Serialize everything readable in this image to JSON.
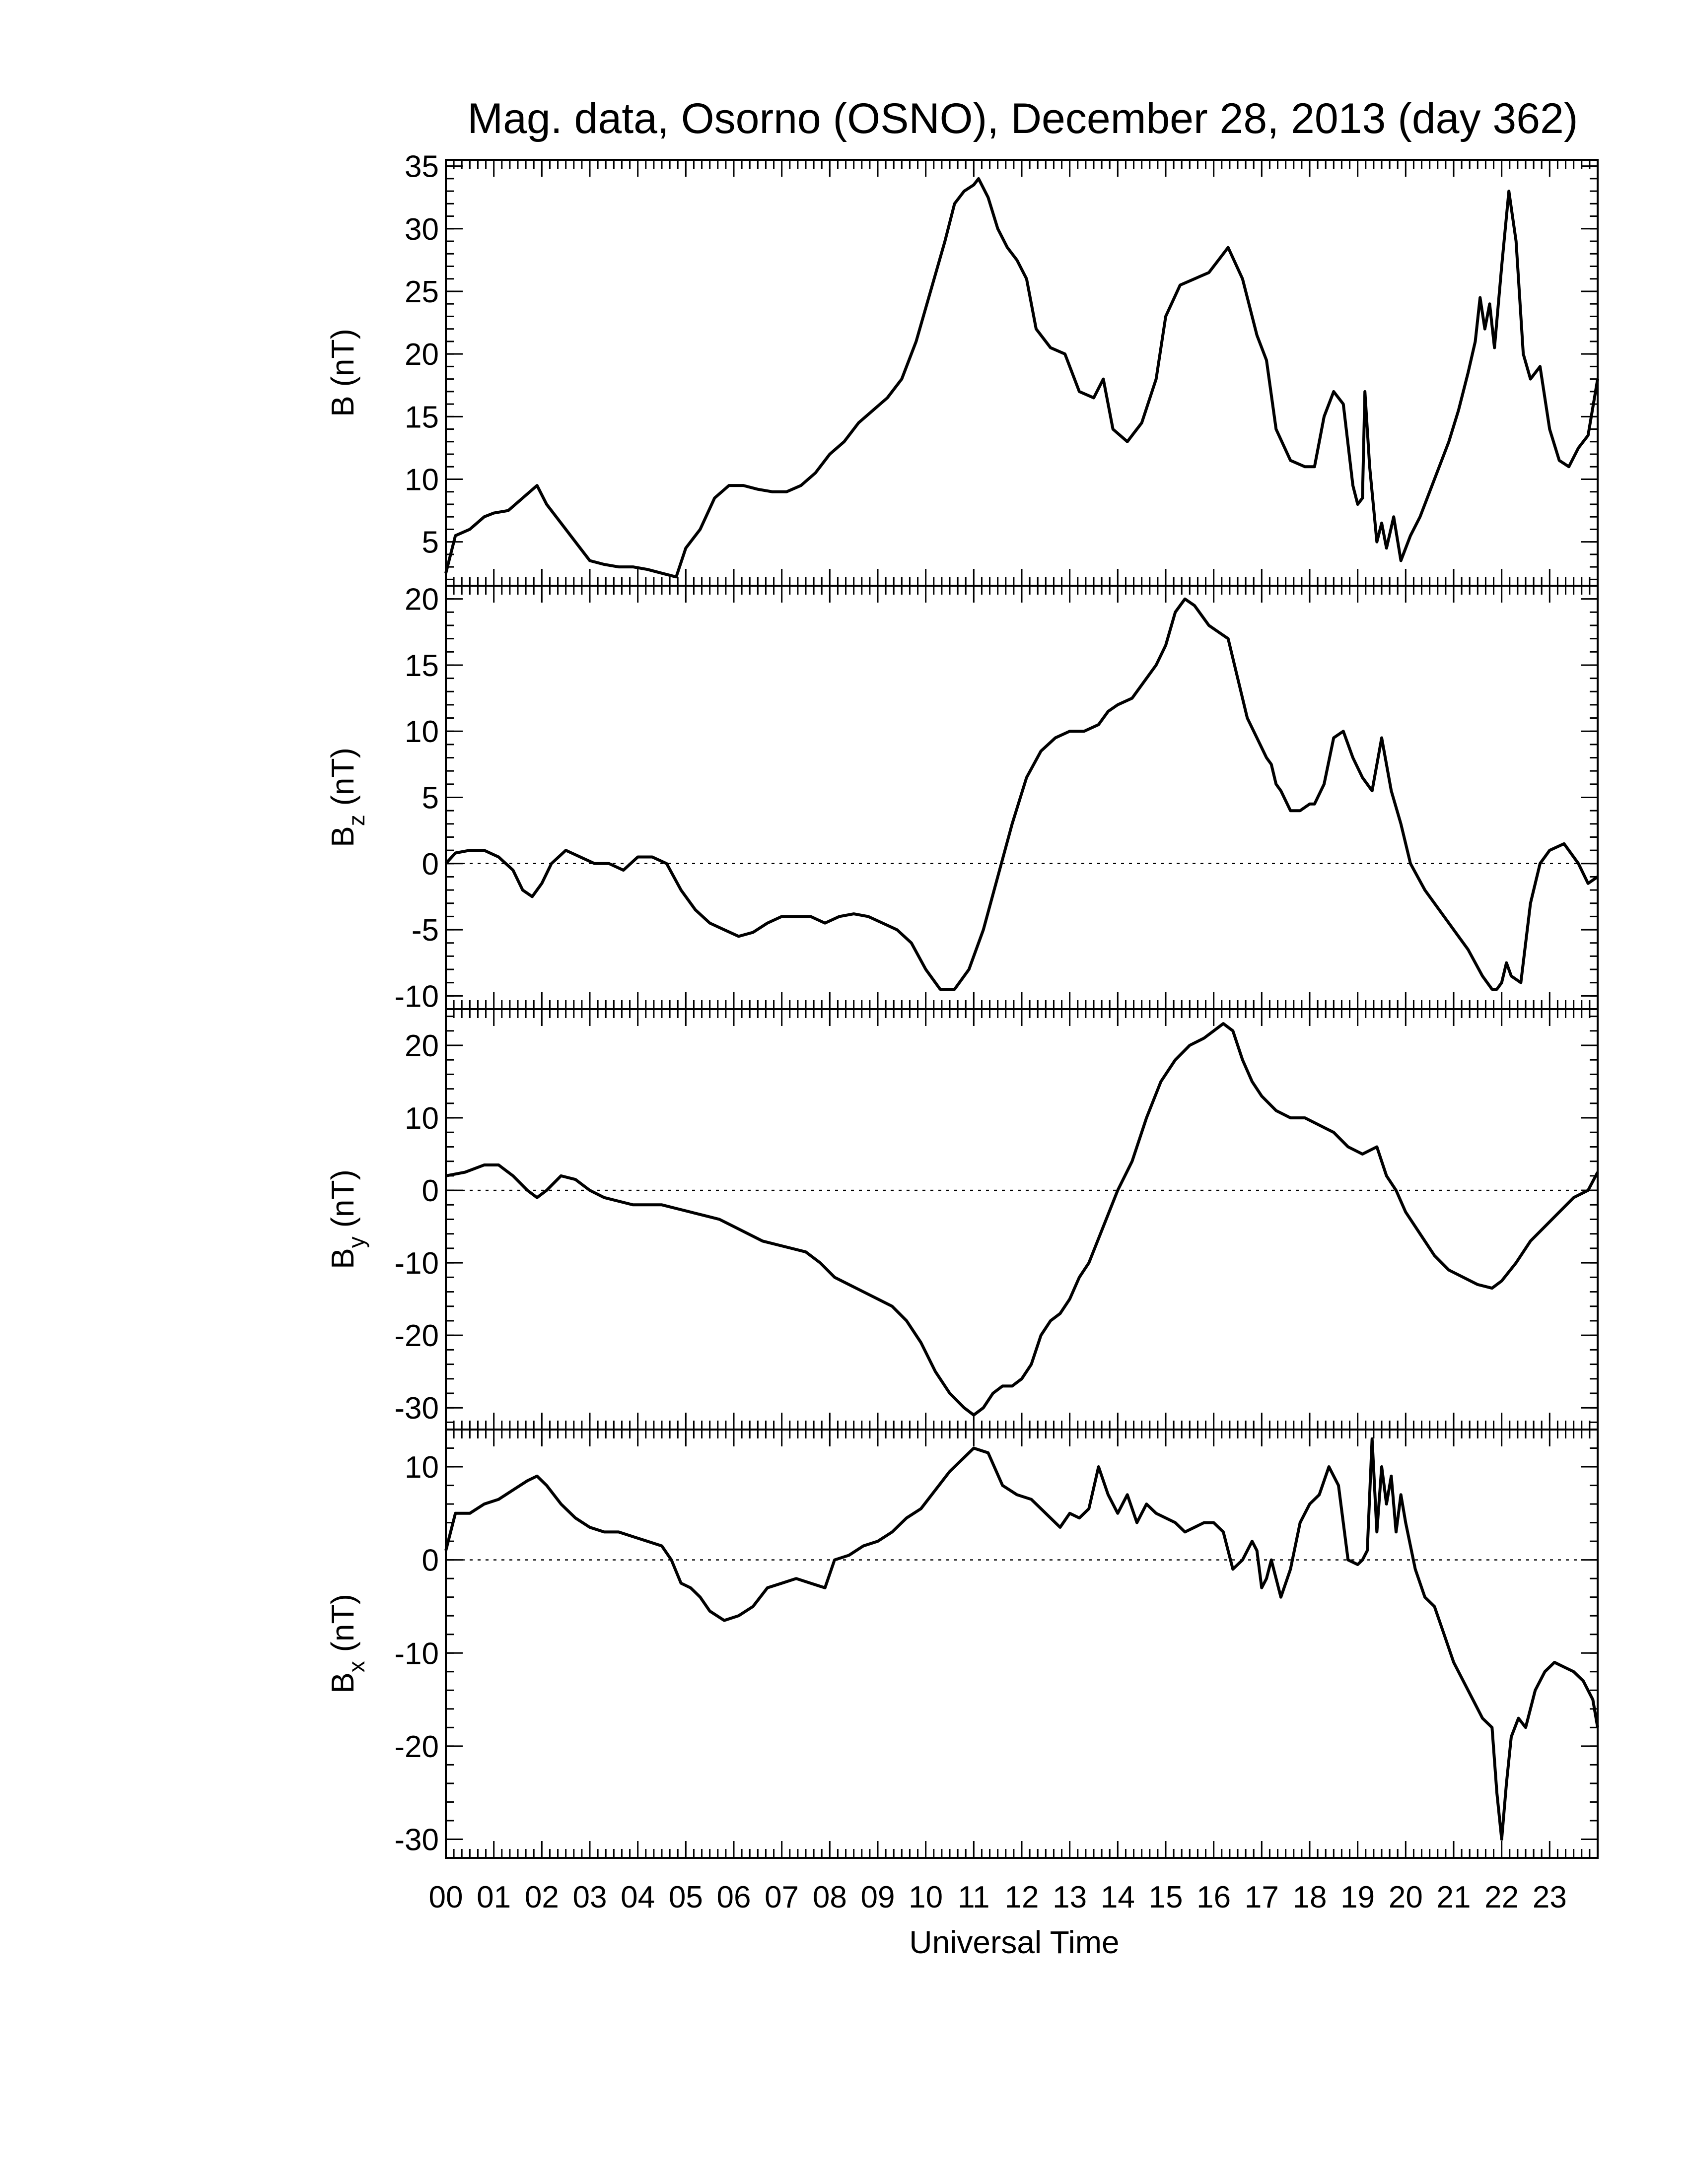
{
  "chart_data": {
    "type": "line",
    "title": "Mag. data, Osorno (OSNO), December 28, 2013 (day 362)",
    "xlabel": "Universal Time",
    "xlim": [
      0,
      24
    ],
    "x_ticks": [
      "00",
      "01",
      "02",
      "03",
      "04",
      "05",
      "06",
      "07",
      "08",
      "09",
      "10",
      "11",
      "12",
      "13",
      "14",
      "15",
      "16",
      "17",
      "18",
      "19",
      "20",
      "21",
      "22",
      "23"
    ],
    "panels": [
      {
        "name": "B",
        "ylabel_main": "B",
        "ylabel_sub": "",
        "ylabel_unit": "(nT)",
        "ylim": [
          1.5,
          35.5
        ],
        "yticks": [
          5,
          10,
          15,
          20,
          25,
          30,
          35
        ],
        "zero_line": false,
        "x": [
          0,
          0.2,
          0.5,
          0.8,
          1.0,
          1.3,
          1.6,
          1.9,
          2.1,
          2.4,
          2.7,
          3.0,
          3.3,
          3.6,
          3.9,
          4.2,
          4.5,
          4.8,
          5.0,
          5.3,
          5.6,
          5.9,
          6.2,
          6.5,
          6.8,
          7.1,
          7.4,
          7.7,
          8.0,
          8.3,
          8.6,
          8.9,
          9.2,
          9.5,
          9.8,
          10.1,
          10.4,
          10.6,
          10.8,
          11.0,
          11.1,
          11.3,
          11.5,
          11.7,
          11.9,
          12.1,
          12.3,
          12.6,
          12.9,
          13.2,
          13.5,
          13.7,
          13.9,
          14.2,
          14.5,
          14.8,
          15.0,
          15.3,
          15.6,
          15.9,
          16.1,
          16.3,
          16.6,
          16.9,
          17.1,
          17.3,
          17.6,
          17.9,
          18.1,
          18.3,
          18.5,
          18.7,
          18.9,
          19.0,
          19.1,
          19.15,
          19.25,
          19.4,
          19.5,
          19.6,
          19.75,
          19.9,
          20.1,
          20.3,
          20.6,
          20.9,
          21.1,
          21.3,
          21.45,
          21.55,
          21.65,
          21.75,
          21.85,
          22.0,
          22.15,
          22.3,
          22.45,
          22.6,
          22.8,
          23.0,
          23.2,
          23.4,
          23.6,
          23.8,
          24.0
        ],
        "y": [
          2.5,
          5.5,
          6.0,
          7.0,
          7.3,
          7.5,
          8.5,
          9.5,
          8.0,
          6.5,
          5.0,
          3.5,
          3.2,
          3.0,
          3.0,
          2.8,
          2.5,
          2.2,
          4.5,
          6.0,
          8.5,
          9.5,
          9.5,
          9.2,
          9.0,
          9.0,
          9.5,
          10.5,
          12.0,
          13.0,
          14.5,
          15.5,
          16.5,
          18.0,
          21.0,
          25.0,
          29.0,
          32.0,
          33.0,
          33.5,
          34.0,
          32.5,
          30.0,
          28.5,
          27.5,
          26.0,
          22.0,
          20.5,
          20.0,
          17.0,
          16.5,
          18.0,
          14.0,
          13.0,
          14.5,
          18.0,
          23.0,
          25.5,
          26.0,
          26.5,
          27.5,
          28.5,
          26.0,
          21.5,
          19.5,
          14.0,
          11.5,
          11.0,
          11.0,
          15.0,
          17.0,
          16.0,
          9.5,
          8.0,
          8.5,
          17.0,
          11.0,
          5.0,
          6.5,
          4.5,
          7.0,
          3.5,
          5.5,
          7.0,
          10.0,
          13.0,
          15.5,
          18.5,
          21.0,
          24.5,
          22.0,
          24.0,
          20.5,
          27.0,
          33.0,
          29.0,
          20.0,
          18.0,
          19.0,
          14.0,
          11.5,
          11.0,
          12.5,
          13.5,
          18.0
        ]
      },
      {
        "name": "Bz",
        "ylabel_main": "B",
        "ylabel_sub": "z",
        "ylabel_unit": "(nT)",
        "ylim": [
          -11,
          21
        ],
        "yticks": [
          -10,
          -5,
          0,
          5,
          10,
          15,
          20
        ],
        "zero_line": true,
        "x": [
          0,
          0.2,
          0.5,
          0.8,
          1.1,
          1.4,
          1.6,
          1.8,
          2.0,
          2.2,
          2.5,
          2.8,
          3.1,
          3.4,
          3.7,
          4.0,
          4.3,
          4.6,
          4.9,
          5.2,
          5.5,
          5.8,
          6.1,
          6.4,
          6.7,
          7.0,
          7.3,
          7.6,
          7.9,
          8.2,
          8.5,
          8.8,
          9.1,
          9.4,
          9.7,
          10.0,
          10.3,
          10.6,
          10.9,
          11.2,
          11.5,
          11.8,
          12.1,
          12.4,
          12.7,
          13.0,
          13.3,
          13.6,
          13.8,
          14.0,
          14.3,
          14.6,
          14.8,
          15.0,
          15.2,
          15.4,
          15.6,
          15.9,
          16.1,
          16.3,
          16.5,
          16.7,
          16.9,
          17.1,
          17.2,
          17.3,
          17.4,
          17.6,
          17.8,
          18.0,
          18.1,
          18.3,
          18.5,
          18.7,
          18.9,
          19.1,
          19.2,
          19.3,
          19.5,
          19.7,
          19.9,
          20.1,
          20.4,
          20.7,
          21.0,
          21.3,
          21.6,
          21.8,
          21.9,
          22.0,
          22.1,
          22.2,
          22.4,
          22.6,
          22.8,
          23.0,
          23.3,
          23.6,
          23.8,
          24.0
        ],
        "y": [
          0,
          0.8,
          1.0,
          1.0,
          0.5,
          -0.5,
          -2.0,
          -2.5,
          -1.5,
          0,
          1.0,
          0.5,
          0,
          0,
          -0.5,
          0.5,
          0.5,
          0,
          -2.0,
          -3.5,
          -4.5,
          -5.0,
          -5.5,
          -5.2,
          -4.5,
          -4.0,
          -4.0,
          -4.0,
          -4.5,
          -4.0,
          -3.8,
          -4.0,
          -4.5,
          -5.0,
          -6.0,
          -8.0,
          -9.5,
          -9.5,
          -8.0,
          -5.0,
          -1.0,
          3.0,
          6.5,
          8.5,
          9.5,
          10.0,
          10.0,
          10.5,
          11.5,
          12.0,
          12.5,
          14.0,
          15.0,
          16.5,
          19.0,
          20.0,
          19.5,
          18.0,
          17.5,
          17.0,
          14.0,
          11.0,
          9.5,
          8.0,
          7.5,
          6.0,
          5.5,
          4.0,
          4.0,
          4.5,
          4.5,
          6.0,
          9.5,
          10.0,
          8.0,
          6.5,
          6.0,
          5.5,
          9.5,
          5.5,
          3.0,
          0,
          -2.0,
          -3.5,
          -5.0,
          -6.5,
          -8.5,
          -9.5,
          -9.5,
          -9.0,
          -7.5,
          -8.5,
          -9.0,
          -3.0,
          0,
          1.0,
          1.5,
          0,
          -1.5,
          -1.0
        ]
      },
      {
        "name": "By",
        "ylabel_main": "B",
        "ylabel_sub": "y",
        "ylabel_unit": "(nT)",
        "ylim": [
          -33,
          25
        ],
        "yticks": [
          -30,
          -20,
          -10,
          0,
          10,
          20
        ],
        "zero_line": true,
        "x": [
          0,
          0.4,
          0.8,
          1.1,
          1.4,
          1.7,
          1.9,
          2.1,
          2.4,
          2.7,
          3.0,
          3.3,
          3.6,
          3.9,
          4.2,
          4.5,
          4.8,
          5.1,
          5.4,
          5.7,
          6.0,
          6.3,
          6.6,
          6.9,
          7.2,
          7.5,
          7.8,
          8.1,
          8.4,
          8.7,
          9.0,
          9.3,
          9.6,
          9.9,
          10.2,
          10.5,
          10.8,
          11.0,
          11.2,
          11.4,
          11.6,
          11.8,
          12.0,
          12.2,
          12.4,
          12.6,
          12.8,
          13.0,
          13.2,
          13.4,
          13.7,
          14.0,
          14.3,
          14.6,
          14.9,
          15.2,
          15.5,
          15.8,
          16.0,
          16.2,
          16.4,
          16.6,
          16.8,
          17.0,
          17.3,
          17.6,
          17.9,
          18.2,
          18.5,
          18.8,
          19.1,
          19.4,
          19.6,
          19.8,
          20.0,
          20.3,
          20.6,
          20.9,
          21.2,
          21.5,
          21.8,
          22.0,
          22.3,
          22.6,
          22.9,
          23.2,
          23.5,
          23.8,
          24.0
        ],
        "y": [
          2,
          2.5,
          3.5,
          3.5,
          2,
          0,
          -1,
          0,
          2,
          1.5,
          0,
          -1,
          -1.5,
          -2,
          -2,
          -2,
          -2.5,
          -3,
          -3.5,
          -4,
          -5,
          -6,
          -7,
          -7.5,
          -8,
          -8.5,
          -10,
          -12,
          -13,
          -14,
          -15,
          -16,
          -18,
          -21,
          -25,
          -28,
          -30,
          -31,
          -30,
          -28,
          -27,
          -27,
          -26,
          -24,
          -20,
          -18,
          -17,
          -15,
          -12,
          -10,
          -5,
          0,
          4,
          10,
          15,
          18,
          20,
          21,
          22,
          23,
          22,
          18,
          15,
          13,
          11,
          10,
          10,
          9,
          8,
          6,
          5,
          6,
          2,
          0,
          -3,
          -6,
          -9,
          -11,
          -12,
          -13,
          -13.5,
          -12.5,
          -10,
          -7,
          -5,
          -3,
          -1,
          0,
          2.5
        ]
      },
      {
        "name": "Bx",
        "ylabel_main": "B",
        "ylabel_sub": "x",
        "ylabel_unit": "(nT)",
        "ylim": [
          -32,
          14
        ],
        "yticks": [
          -30,
          -20,
          -10,
          0,
          10
        ],
        "zero_line": true,
        "x": [
          0,
          0.2,
          0.5,
          0.8,
          1.1,
          1.4,
          1.7,
          1.9,
          2.1,
          2.4,
          2.7,
          3.0,
          3.3,
          3.6,
          3.9,
          4.2,
          4.5,
          4.7,
          4.9,
          5.1,
          5.3,
          5.5,
          5.8,
          6.1,
          6.4,
          6.7,
          7.0,
          7.3,
          7.6,
          7.9,
          8.1,
          8.4,
          8.7,
          9.0,
          9.3,
          9.6,
          9.9,
          10.2,
          10.5,
          10.8,
          11.0,
          11.3,
          11.6,
          11.9,
          12.2,
          12.5,
          12.8,
          13.0,
          13.2,
          13.4,
          13.6,
          13.8,
          14.0,
          14.2,
          14.4,
          14.6,
          14.8,
          15.0,
          15.2,
          15.4,
          15.6,
          15.8,
          16.0,
          16.2,
          16.4,
          16.6,
          16.8,
          16.9,
          17.0,
          17.1,
          17.2,
          17.4,
          17.6,
          17.8,
          18.0,
          18.2,
          18.4,
          18.6,
          18.8,
          19.0,
          19.1,
          19.2,
          19.3,
          19.4,
          19.5,
          19.6,
          19.7,
          19.8,
          19.9,
          20.0,
          20.2,
          20.4,
          20.6,
          20.8,
          21.0,
          21.2,
          21.4,
          21.6,
          21.8,
          21.9,
          22.0,
          22.1,
          22.2,
          22.35,
          22.5,
          22.7,
          22.9,
          23.1,
          23.3,
          23.5,
          23.7,
          23.9,
          24.0
        ],
        "y": [
          1,
          5,
          5,
          6,
          6.5,
          7.5,
          8.5,
          9,
          8,
          6,
          4.5,
          3.5,
          3,
          3,
          2.5,
          2,
          1.5,
          0,
          -2.5,
          -3,
          -4,
          -5.5,
          -6.5,
          -6,
          -5,
          -3,
          -2.5,
          -2,
          -2.5,
          -3,
          0,
          0.5,
          1.5,
          2,
          3,
          4.5,
          5.5,
          7.5,
          9.5,
          11,
          12,
          11.5,
          8,
          7,
          6.5,
          5,
          3.5,
          5,
          4.5,
          5.5,
          10,
          7,
          5,
          7,
          4,
          6,
          5,
          4.5,
          4,
          3,
          3.5,
          4,
          4,
          3,
          -1,
          0,
          2,
          1,
          -3,
          -2,
          0,
          -4,
          -1,
          4,
          6,
          7,
          10,
          8,
          0,
          -0.5,
          0,
          1,
          13,
          3,
          10,
          6,
          9,
          3,
          7,
          4,
          -1,
          -4,
          -5,
          -8,
          -11,
          -13,
          -15,
          -17,
          -18,
          -25,
          -30,
          -24,
          -19,
          -17,
          -18,
          -14,
          -12,
          -11,
          -11.5,
          -12,
          -13,
          -15,
          -18
        ]
      }
    ]
  }
}
